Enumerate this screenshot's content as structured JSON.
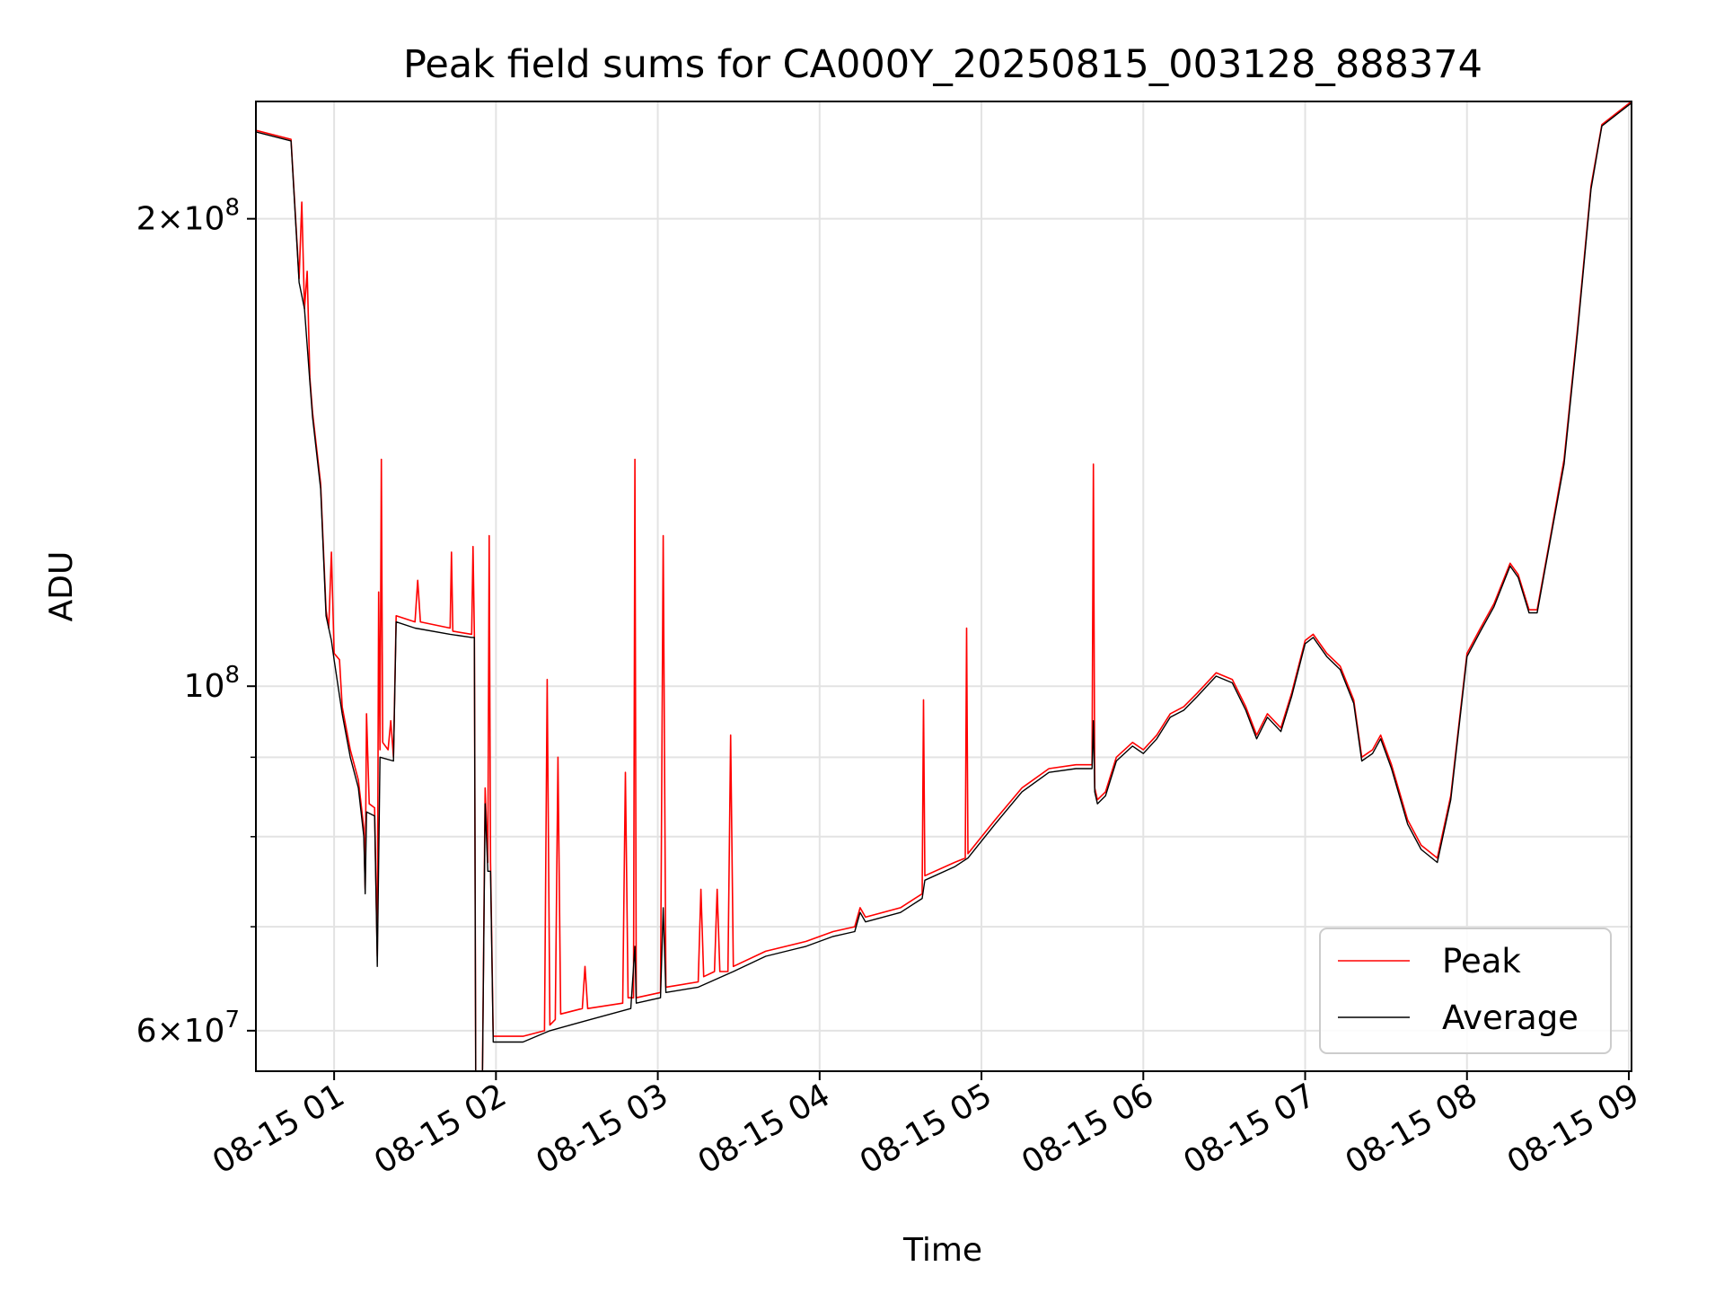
{
  "chart_data": {
    "type": "line",
    "title": "Peak field sums for CA000Y_20250815_003128_888374",
    "xlabel": "Time",
    "ylabel": "ADU",
    "yscale": "log",
    "xlim": [
      "08-15 00:31",
      "08-15 09:01"
    ],
    "ylim": [
      56500000,
      238000000
    ],
    "x_ticks": [
      {
        "value": "08-15 01:00",
        "label": "08-15 01"
      },
      {
        "value": "08-15 02:00",
        "label": "08-15 02"
      },
      {
        "value": "08-15 03:00",
        "label": "08-15 03"
      },
      {
        "value": "08-15 04:00",
        "label": "08-15 04"
      },
      {
        "value": "08-15 05:00",
        "label": "08-15 05"
      },
      {
        "value": "08-15 06:00",
        "label": "08-15 06"
      },
      {
        "value": "08-15 07:00",
        "label": "08-15 07"
      },
      {
        "value": "08-15 08:00",
        "label": "08-15 08"
      },
      {
        "value": "08-15 09:00",
        "label": "08-15 09"
      }
    ],
    "y_ticks": [
      {
        "value": 60000000,
        "base": "6",
        "exp": "7"
      },
      {
        "value": 100000000,
        "base": "",
        "exp": "8"
      },
      {
        "value": 200000000,
        "base": "2",
        "exp": "8"
      }
    ],
    "y_minor_gridlines": [
      70000000,
      80000000,
      90000000
    ],
    "grid": true,
    "legend_position": "lower-right",
    "series": [
      {
        "name": "Peak",
        "color": "#ff0000",
        "points": [
          [
            "08-15 00:31",
            228000000
          ],
          [
            "08-15 00:44",
            225000000
          ],
          [
            "08-15 00:47",
            183000000
          ],
          [
            "08-15 00:48",
            205000000
          ],
          [
            "08-15 00:49",
            175000000
          ],
          [
            "08-15 00:50",
            185000000
          ],
          [
            "08-15 00:51",
            158000000
          ],
          [
            "08-15 00:52",
            150000000
          ],
          [
            "08-15 00:55",
            135000000
          ],
          [
            "08-15 00:57",
            112000000
          ],
          [
            "08-15 00:58",
            109000000
          ],
          [
            "08-15 00:59",
            122000000
          ],
          [
            "08-15 01:00",
            105000000
          ],
          [
            "08-15 01:02",
            104000000
          ],
          [
            "08-15 01:03",
            97000000
          ],
          [
            "08-15 01:06",
            91000000
          ],
          [
            "08-15 01:09",
            87000000
          ],
          [
            "08-15 01:11",
            81000000
          ],
          [
            "08-15 01:11:30",
            74000000
          ],
          [
            "08-15 01:12",
            96000000
          ],
          [
            "08-15 01:13",
            84000000
          ],
          [
            "08-15 01:15",
            83500000
          ],
          [
            "08-15 01:16",
            67000000
          ],
          [
            "08-15 01:16:30",
            115000000
          ],
          [
            "08-15 01:17",
            91000000
          ],
          [
            "08-15 01:17:30",
            140000000
          ],
          [
            "08-15 01:18",
            92000000
          ],
          [
            "08-15 01:20",
            91000000
          ],
          [
            "08-15 01:21",
            95000000
          ],
          [
            "08-15 01:22",
            90000000
          ],
          [
            "08-15 01:23",
            111000000
          ],
          [
            "08-15 01:30",
            110000000
          ],
          [
            "08-15 01:31",
            117000000
          ],
          [
            "08-15 01:32",
            110000000
          ],
          [
            "08-15 01:43",
            109000000
          ],
          [
            "08-15 01:43:30",
            122000000
          ],
          [
            "08-15 01:44",
            108500000
          ],
          [
            "08-15 01:51",
            108000000
          ],
          [
            "08-15 01:51:30",
            123000000
          ],
          [
            "08-15 01:52",
            108000000
          ],
          [
            "08-15 01:52:30",
            56000000
          ],
          [
            "08-15 01:55",
            56500000
          ],
          [
            "08-15 01:56",
            86000000
          ],
          [
            "08-15 01:57",
            77000000
          ],
          [
            "08-15 01:57:30",
            125000000
          ],
          [
            "08-15 01:58",
            77000000
          ],
          [
            "08-15 01:59",
            59500000
          ],
          [
            "08-15 02:10",
            59500000
          ],
          [
            "08-15 02:18",
            60000000
          ],
          [
            "08-15 02:19",
            101000000
          ],
          [
            "08-15 02:20",
            60500000
          ],
          [
            "08-15 02:22",
            61000000
          ],
          [
            "08-15 02:23",
            90000000
          ],
          [
            "08-15 02:24",
            61500000
          ],
          [
            "08-15 02:32",
            62000000
          ],
          [
            "08-15 02:33",
            66000000
          ],
          [
            "08-15 02:34",
            62000000
          ],
          [
            "08-15 02:47",
            62500000
          ],
          [
            "08-15 02:48",
            88000000
          ],
          [
            "08-15 02:49",
            63000000
          ],
          [
            "08-15 02:51",
            63000000
          ],
          [
            "08-15 02:51:30",
            140000000
          ],
          [
            "08-15 02:52",
            63000000
          ],
          [
            "08-15 03:01",
            63500000
          ],
          [
            "08-15 03:02",
            125000000
          ],
          [
            "08-15 03:03",
            64000000
          ],
          [
            "08-15 03:15",
            64500000
          ],
          [
            "08-15 03:16",
            74000000
          ],
          [
            "08-15 03:17",
            65000000
          ],
          [
            "08-15 03:21",
            65500000
          ],
          [
            "08-15 03:22",
            74000000
          ],
          [
            "08-15 03:23",
            65500000
          ],
          [
            "08-15 03:26",
            65500000
          ],
          [
            "08-15 03:27",
            93000000
          ],
          [
            "08-15 03:28",
            66000000
          ],
          [
            "08-15 03:40",
            67500000
          ],
          [
            "08-15 03:55",
            68500000
          ],
          [
            "08-15 04:05",
            69500000
          ],
          [
            "08-15 04:13",
            70000000
          ],
          [
            "08-15 04:15",
            72000000
          ],
          [
            "08-15 04:17",
            71000000
          ],
          [
            "08-15 04:30",
            72000000
          ],
          [
            "08-15 04:38",
            73500000
          ],
          [
            "08-15 04:38:30",
            98000000
          ],
          [
            "08-15 04:39",
            75500000
          ],
          [
            "08-15 04:50",
            77000000
          ],
          [
            "08-15 04:54",
            77500000
          ],
          [
            "08-15 04:54:30",
            109000000
          ],
          [
            "08-15 04:55",
            78000000
          ],
          [
            "08-15 05:05",
            82000000
          ],
          [
            "08-15 05:15",
            86000000
          ],
          [
            "08-15 05:25",
            88500000
          ],
          [
            "08-15 05:35",
            89000000
          ],
          [
            "08-15 05:41",
            89000000
          ],
          [
            "08-15 05:41:30",
            139000000
          ],
          [
            "08-15 05:42",
            86000000
          ],
          [
            "08-15 05:43",
            84500000
          ],
          [
            "08-15 05:46",
            85500000
          ],
          [
            "08-15 05:50",
            90000000
          ],
          [
            "08-15 05:56",
            92000000
          ],
          [
            "08-15 06:00",
            91000000
          ],
          [
            "08-15 06:05",
            93000000
          ],
          [
            "08-15 06:10",
            96000000
          ],
          [
            "08-15 06:15",
            97000000
          ],
          [
            "08-15 06:20",
            99000000
          ],
          [
            "08-15 06:27",
            102000000
          ],
          [
            "08-15 06:33",
            101000000
          ],
          [
            "08-15 06:38",
            97000000
          ],
          [
            "08-15 06:42",
            93000000
          ],
          [
            "08-15 06:46",
            96000000
          ],
          [
            "08-15 06:51",
            94000000
          ],
          [
            "08-15 06:55",
            99000000
          ],
          [
            "08-15 07:00",
            107000000
          ],
          [
            "08-15 07:03",
            108000000
          ],
          [
            "08-15 07:08",
            105000000
          ],
          [
            "08-15 07:13",
            103000000
          ],
          [
            "08-15 07:18",
            98000000
          ],
          [
            "08-15 07:21",
            90000000
          ],
          [
            "08-15 07:25",
            91000000
          ],
          [
            "08-15 07:28",
            93000000
          ],
          [
            "08-15 07:32",
            89000000
          ],
          [
            "08-15 07:38",
            82000000
          ],
          [
            "08-15 07:43",
            79000000
          ],
          [
            "08-15 07:49",
            77500000
          ],
          [
            "08-15 07:54",
            85000000
          ],
          [
            "08-15 08:00",
            105000000
          ],
          [
            "08-15 08:05",
            109000000
          ],
          [
            "08-15 08:10",
            113000000
          ],
          [
            "08-15 08:16",
            120000000
          ],
          [
            "08-15 08:19",
            118000000
          ],
          [
            "08-15 08:23",
            112000000
          ],
          [
            "08-15 08:26",
            112000000
          ],
          [
            "08-15 08:31",
            125000000
          ],
          [
            "08-15 08:36",
            140000000
          ],
          [
            "08-15 08:41",
            170000000
          ],
          [
            "08-15 08:46",
            210000000
          ],
          [
            "08-15 08:50",
            230000000
          ],
          [
            "08-15 09:01",
            238000000
          ]
        ]
      },
      {
        "name": "Average",
        "color": "#000000",
        "points": [
          [
            "08-15 00:31",
            227500000
          ],
          [
            "08-15 00:44",
            224500000
          ],
          [
            "08-15 00:47",
            182000000
          ],
          [
            "08-15 00:49",
            175000000
          ],
          [
            "08-15 00:51",
            157000000
          ],
          [
            "08-15 00:52",
            149000000
          ],
          [
            "08-15 00:55",
            134000000
          ],
          [
            "08-15 00:57",
            111000000
          ],
          [
            "08-15 00:59",
            107000000
          ],
          [
            "08-15 01:00",
            104000000
          ],
          [
            "08-15 01:03",
            96000000
          ],
          [
            "08-15 01:06",
            90000000
          ],
          [
            "08-15 01:09",
            86000000
          ],
          [
            "08-15 01:11",
            80000000
          ],
          [
            "08-15 01:11:30",
            73500000
          ],
          [
            "08-15 01:12",
            83000000
          ],
          [
            "08-15 01:15",
            82500000
          ],
          [
            "08-15 01:16",
            66000000
          ],
          [
            "08-15 01:17",
            90000000
          ],
          [
            "08-15 01:22",
            89500000
          ],
          [
            "08-15 01:23",
            110000000
          ],
          [
            "08-15 01:30",
            109000000
          ],
          [
            "08-15 01:43",
            108000000
          ],
          [
            "08-15 01:51",
            107500000
          ],
          [
            "08-15 01:52",
            107500000
          ],
          [
            "08-15 01:52:30",
            55500000
          ],
          [
            "08-15 01:55",
            56000000
          ],
          [
            "08-15 01:56",
            84000000
          ],
          [
            "08-15 01:57",
            76000000
          ],
          [
            "08-15 01:58",
            76000000
          ],
          [
            "08-15 01:59",
            59000000
          ],
          [
            "08-15 02:10",
            59000000
          ],
          [
            "08-15 02:20",
            60000000
          ],
          [
            "08-15 02:35",
            61000000
          ],
          [
            "08-15 02:50",
            62000000
          ],
          [
            "08-15 02:51:30",
            68000000
          ],
          [
            "08-15 02:52",
            62500000
          ],
          [
            "08-15 03:01",
            63000000
          ],
          [
            "08-15 03:02",
            72000000
          ],
          [
            "08-15 03:03",
            63500000
          ],
          [
            "08-15 03:15",
            64000000
          ],
          [
            "08-15 03:28",
            65500000
          ],
          [
            "08-15 03:40",
            67000000
          ],
          [
            "08-15 03:55",
            68000000
          ],
          [
            "08-15 04:05",
            69000000
          ],
          [
            "08-15 04:13",
            69500000
          ],
          [
            "08-15 04:15",
            71500000
          ],
          [
            "08-15 04:17",
            70500000
          ],
          [
            "08-15 04:30",
            71500000
          ],
          [
            "08-15 04:38",
            73000000
          ],
          [
            "08-15 04:39",
            75000000
          ],
          [
            "08-15 04:50",
            76500000
          ],
          [
            "08-15 04:55",
            77500000
          ],
          [
            "08-15 05:05",
            81500000
          ],
          [
            "08-15 05:15",
            85500000
          ],
          [
            "08-15 05:25",
            88000000
          ],
          [
            "08-15 05:35",
            88500000
          ],
          [
            "08-15 05:41",
            88500000
          ],
          [
            "08-15 05:41:30",
            95000000
          ],
          [
            "08-15 05:42",
            85500000
          ],
          [
            "08-15 05:43",
            84000000
          ],
          [
            "08-15 05:46",
            85000000
          ],
          [
            "08-15 05:50",
            89500000
          ],
          [
            "08-15 05:56",
            91500000
          ],
          [
            "08-15 06:00",
            90500000
          ],
          [
            "08-15 06:05",
            92500000
          ],
          [
            "08-15 06:10",
            95500000
          ],
          [
            "08-15 06:15",
            96500000
          ],
          [
            "08-15 06:20",
            98500000
          ],
          [
            "08-15 06:27",
            101500000
          ],
          [
            "08-15 06:33",
            100500000
          ],
          [
            "08-15 06:38",
            96500000
          ],
          [
            "08-15 06:42",
            92500000
          ],
          [
            "08-15 06:46",
            95500000
          ],
          [
            "08-15 06:51",
            93500000
          ],
          [
            "08-15 06:55",
            98500000
          ],
          [
            "08-15 07:00",
            106500000
          ],
          [
            "08-15 07:03",
            107500000
          ],
          [
            "08-15 07:08",
            104500000
          ],
          [
            "08-15 07:13",
            102500000
          ],
          [
            "08-15 07:18",
            97500000
          ],
          [
            "08-15 07:21",
            89500000
          ],
          [
            "08-15 07:25",
            90500000
          ],
          [
            "08-15 07:28",
            92500000
          ],
          [
            "08-15 07:32",
            88500000
          ],
          [
            "08-15 07:38",
            81500000
          ],
          [
            "08-15 07:43",
            78500000
          ],
          [
            "08-15 07:49",
            77000000
          ],
          [
            "08-15 07:54",
            84500000
          ],
          [
            "08-15 08:00",
            104500000
          ],
          [
            "08-15 08:05",
            108500000
          ],
          [
            "08-15 08:10",
            112500000
          ],
          [
            "08-15 08:16",
            119500000
          ],
          [
            "08-15 08:19",
            117500000
          ],
          [
            "08-15 08:23",
            111500000
          ],
          [
            "08-15 08:26",
            111500000
          ],
          [
            "08-15 08:31",
            124500000
          ],
          [
            "08-15 08:36",
            139000000
          ],
          [
            "08-15 08:41",
            169000000
          ],
          [
            "08-15 08:46",
            209000000
          ],
          [
            "08-15 08:50",
            229500000
          ],
          [
            "08-15 09:01",
            237500000
          ]
        ]
      }
    ]
  }
}
